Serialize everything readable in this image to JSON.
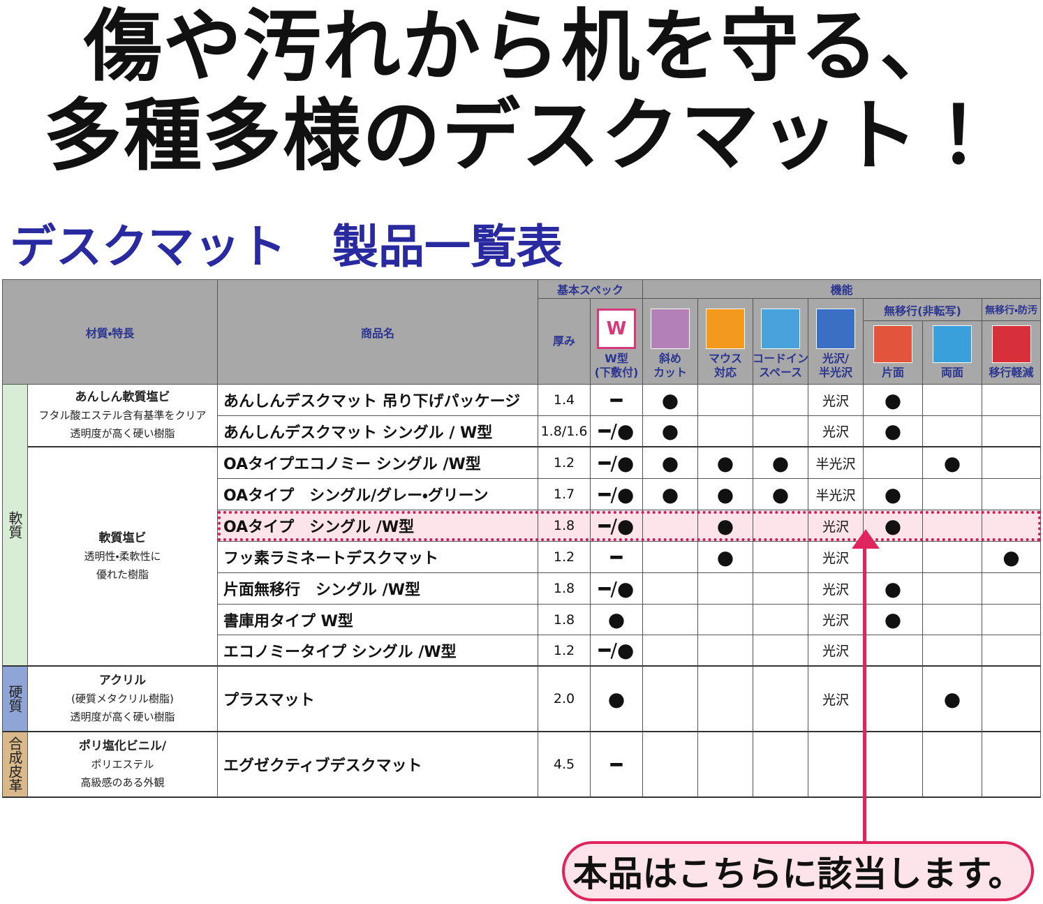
{
  "header": {
    "title_lines": [
      "傷や汚れから机を守る、",
      "多種多様のデスクマット！"
    ],
    "subtitle": "デスクマット　製品一覧表"
  },
  "table": {
    "head": {
      "material": "材質・特長",
      "name": "商品名",
      "basic_spec": "基本スペック",
      "function": "機能",
      "no_migration": "無移行(非転写)",
      "no_migration_antifouling": "無移行・防汚",
      "w_icon": "W",
      "columns": [
        [
          "厚み"
        ],
        [
          "W型",
          "(下敷付)"
        ],
        [
          "斜め",
          "カット"
        ],
        [
          "マウス",
          "対応"
        ],
        [
          "コードイン",
          "スペース"
        ],
        [
          "光沢/",
          "半光沢"
        ],
        [
          "片面"
        ],
        [
          "両面"
        ],
        [
          "移行軽減"
        ]
      ]
    },
    "categories": [
      "軟質",
      "硬質",
      "合成皮革"
    ],
    "materials": [
      [
        "あんしん軟質塩ビ",
        "フタル酸エステル含有基準をクリア",
        "透明度が高く硬い樹脂"
      ],
      [
        "軟質塩ビ",
        "透明性・柔軟性に",
        "優れた樹脂"
      ],
      [
        "アクリル",
        "(硬質メタクリル樹脂)",
        "透明度が高く硬い樹脂"
      ],
      [
        "ポリ塩化ビニル/",
        "ポリエステル",
        "高級感のある外観"
      ]
    ],
    "rows": [
      [
        "あんしんデスクマット 吊り下げパッケージ",
        "1.4",
        "━",
        "●",
        null,
        null,
        "光沢",
        "●",
        null,
        null
      ],
      [
        "あんしんデスクマット シングル / W型",
        "1.8/1.6",
        "━/●",
        "●",
        null,
        null,
        "光沢",
        "●",
        null,
        null
      ],
      [
        "OAタイプエコノミー シングル /W型",
        "1.2",
        "━/●",
        "●",
        "●",
        "●",
        "半光沢",
        null,
        "●",
        null
      ],
      [
        "OAタイプ　シングル/グレー・グリーン",
        "1.7",
        "━/●",
        "●",
        "●",
        "●",
        "半光沢",
        "●",
        null,
        null
      ],
      [
        "OAタイプ　シングル /W型",
        "1.8",
        "━/●",
        null,
        "●",
        null,
        "光沢",
        "●",
        null,
        null
      ],
      [
        "フッ素ラミネートデスクマット",
        "1.2",
        "━",
        null,
        "●",
        null,
        "光沢",
        null,
        null,
        "●"
      ],
      [
        "片面無移行　シングル /W型",
        "1.8",
        "━/●",
        null,
        null,
        null,
        "光沢",
        "●",
        null,
        null
      ],
      [
        "書庫用タイプ W型",
        "1.8",
        "●",
        null,
        null,
        null,
        "光沢",
        "●",
        null,
        null
      ],
      [
        "エコノミータイプ シングル /W型",
        "1.2",
        "━/●",
        null,
        null,
        null,
        "光沢",
        null,
        null,
        null
      ],
      [
        "プラスマット",
        "2.0",
        "●",
        null,
        null,
        null,
        "光沢",
        null,
        "●",
        null
      ],
      [
        "エグゼクティブデスクマット",
        "4.5",
        "━",
        null,
        null,
        null,
        null,
        null,
        null,
        null
      ]
    ]
  },
  "callout": "本品はこちらに該当します。"
}
